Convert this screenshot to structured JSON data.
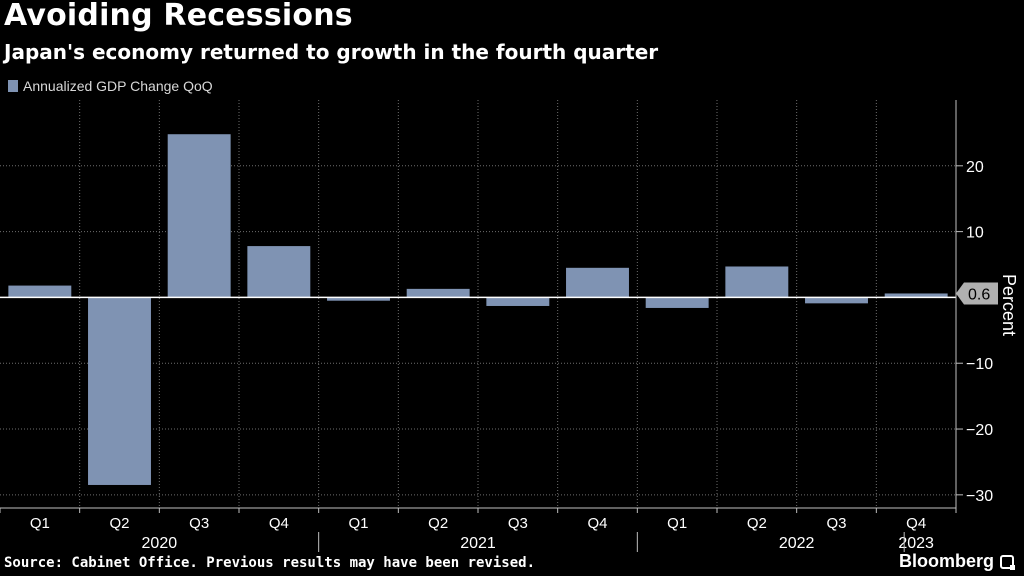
{
  "header": {
    "title": "Avoiding Recessions",
    "subtitle": "Japan's economy returned to growth in the fourth quarter"
  },
  "legend": {
    "label": "Annualized GDP Change QoQ"
  },
  "footer": {
    "source": "Source: Cabinet Office. Previous results may have been revised.",
    "brand": "Bloomberg"
  },
  "colors": {
    "bar": "#7f93b3",
    "background": "#000000",
    "zero_line": "#ffffff",
    "grid": "#6e6e6e"
  },
  "chart_data": {
    "type": "bar",
    "title": "Avoiding Recessions",
    "subtitle": "Japan's economy returned to growth in the fourth quarter",
    "categories": [
      "Q1",
      "Q2",
      "Q3",
      "Q4",
      "Q1",
      "Q2",
      "Q3",
      "Q4",
      "Q1",
      "Q2",
      "Q3",
      "Q4"
    ],
    "year_labels": [
      "2020",
      "2021",
      "2022",
      "2023"
    ],
    "series": [
      {
        "name": "Annualized GDP Change QoQ",
        "values": [
          1.8,
          -28.5,
          24.8,
          7.8,
          -0.5,
          1.3,
          -1.3,
          4.5,
          -1.6,
          4.7,
          -0.9,
          0.6
        ]
      }
    ],
    "last_value_label": "0.6",
    "ylabel": "Percent",
    "xlabel": "",
    "ylim": [
      -32,
      30
    ],
    "yticks": [
      20,
      10,
      -10,
      -20,
      -30
    ],
    "grid": true,
    "legend_position": "top-left"
  }
}
